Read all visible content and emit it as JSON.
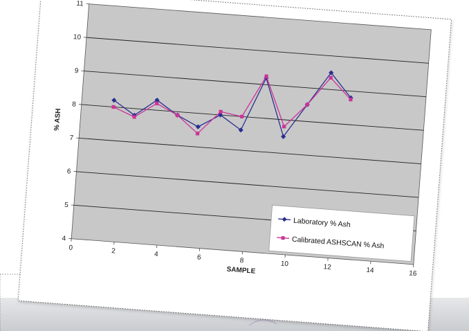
{
  "chart_data": {
    "type": "line",
    "title": "",
    "xlabel": "SAMPLE",
    "ylabel": "% ASH",
    "xlim": [
      0,
      16
    ],
    "ylim": [
      4,
      11
    ],
    "x_ticks": [
      "0",
      "2",
      "4",
      "6",
      "8",
      "10",
      "12",
      "14",
      "16"
    ],
    "y_ticks": [
      "4",
      "5",
      "6",
      "7",
      "8",
      "9",
      "10",
      "11"
    ],
    "grid": true,
    "legend_position": "bottom-right",
    "x": [
      1.5,
      2.5,
      3.5,
      4.5,
      5.5,
      6.5,
      7.5,
      8.5,
      9.5,
      10.5,
      11.5,
      12.5
    ],
    "series": [
      {
        "name": "Laboratory % Ash",
        "color": "#2b2f8f",
        "marker": "diamond",
        "values": [
          8.2,
          7.8,
          8.3,
          7.9,
          7.6,
          8.0,
          7.6,
          9.2,
          7.5,
          8.5,
          9.5,
          8.8
        ]
      },
      {
        "name": "Calibrated ASHSCAN % Ash",
        "color": "#cc3399",
        "marker": "square",
        "values": [
          8.0,
          7.75,
          8.2,
          7.9,
          7.4,
          8.1,
          8.0,
          9.25,
          7.8,
          8.5,
          9.35,
          8.75
        ]
      }
    ]
  }
}
